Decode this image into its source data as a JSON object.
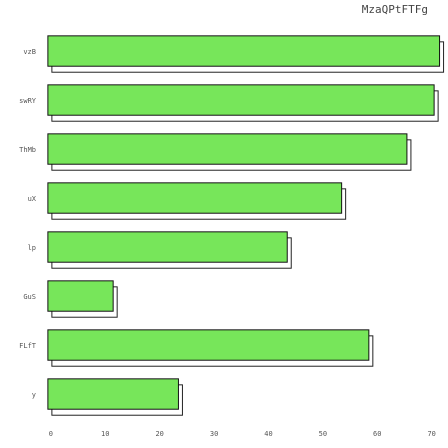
{
  "chart_data": {
    "type": "bar",
    "orientation": "horizontal",
    "title": "MzaQPtFTFg",
    "xlabel": "",
    "ylabel": "",
    "categories": [
      "vzB",
      "swRY",
      "ThMb",
      "uX",
      "lp",
      "GuS",
      "FLfT",
      "y"
    ],
    "values": [
      72,
      71,
      66,
      54,
      44,
      12,
      59,
      24
    ],
    "xlim": [
      -2,
      73
    ],
    "xticks": [
      0,
      10,
      20,
      30,
      40,
      50,
      60,
      70
    ],
    "grid": false,
    "legend": "none",
    "bar_color": "#77e65a",
    "edge_color": "#111111"
  }
}
